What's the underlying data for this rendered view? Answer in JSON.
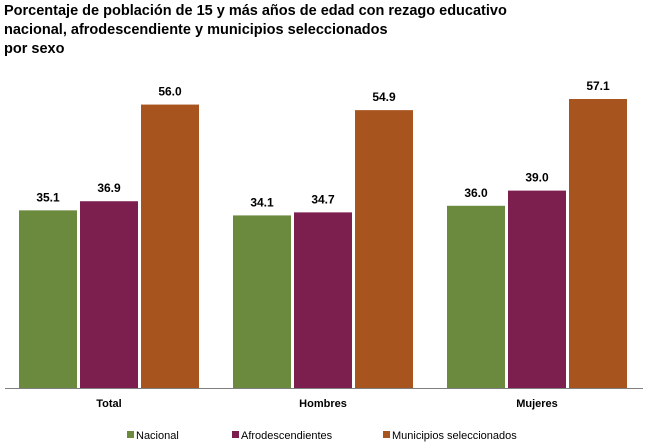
{
  "chart_data": {
    "type": "bar",
    "title_lines": [
      "Porcentaje de población de 15 y más años de edad con rezago educativo",
      "nacional, afrodescendiente y municipios seleccionados",
      "por sexo"
    ],
    "categories": [
      "Total",
      "Hombres",
      "Mujeres"
    ],
    "series": [
      {
        "name": "Nacional",
        "values": [
          35.1,
          34.1,
          36.0
        ],
        "labels": [
          "35.1",
          "34.1",
          "36.0"
        ],
        "color": "#6b8a3e"
      },
      {
        "name": "Afrodescendientes",
        "values": [
          36.9,
          34.7,
          39.0
        ],
        "labels": [
          "36.9",
          "34.7",
          "39.0"
        ],
        "color": "#7c1f4f"
      },
      {
        "name": "Municipios seleccionados",
        "values": [
          56.0,
          54.9,
          57.1
        ],
        "labels": [
          "56.0",
          "54.9",
          "57.1"
        ],
        "color": "#a8541f"
      }
    ],
    "ylim": [
      0,
      57.1
    ],
    "grid": false,
    "legend_position": "bottom"
  }
}
